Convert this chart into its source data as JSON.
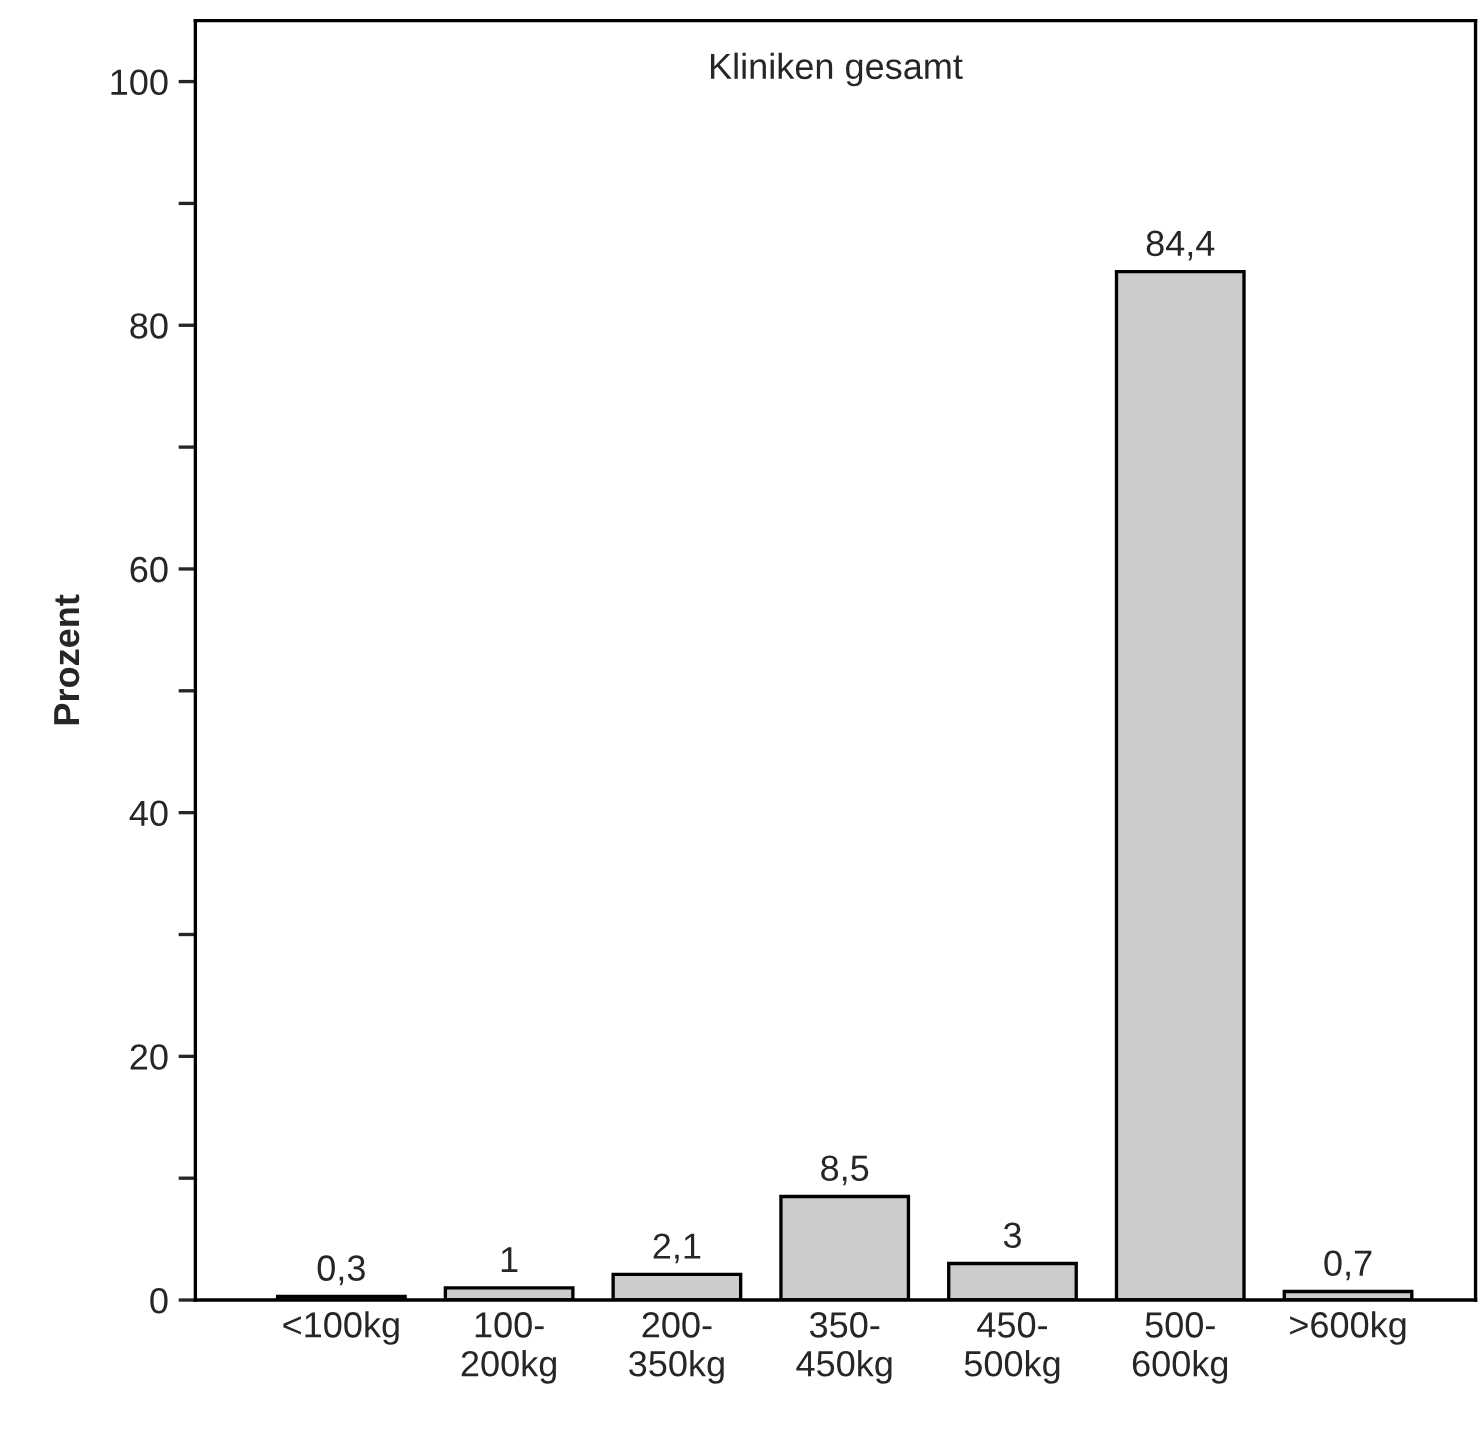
{
  "chart_data": {
    "type": "bar",
    "title": "Kliniken gesamt",
    "ylabel": "Prozent",
    "categories": [
      "<100kg",
      "100-\n200kg",
      "200-\n350kg",
      "350-\n450kg",
      "450-\n500kg",
      "500-\n600kg",
      ">600kg"
    ],
    "values": [
      0.3,
      1,
      2.1,
      8.5,
      3,
      84.4,
      0.7
    ],
    "value_labels": [
      "0,3",
      "1",
      "2,1",
      "8,5",
      "3",
      "84,4",
      "0,7"
    ],
    "color": "#cccccc",
    "ylim": [
      0,
      105
    ],
    "yticks": [
      0,
      {
        "value": 10,
        "label": null
      },
      20,
      {
        "value": 30,
        "label": null
      },
      40,
      {
        "value": 50,
        "label": null
      },
      60,
      {
        "value": 70,
        "label": null
      },
      80,
      {
        "value": 90,
        "label": null
      },
      100
    ],
    "grid": false
  }
}
